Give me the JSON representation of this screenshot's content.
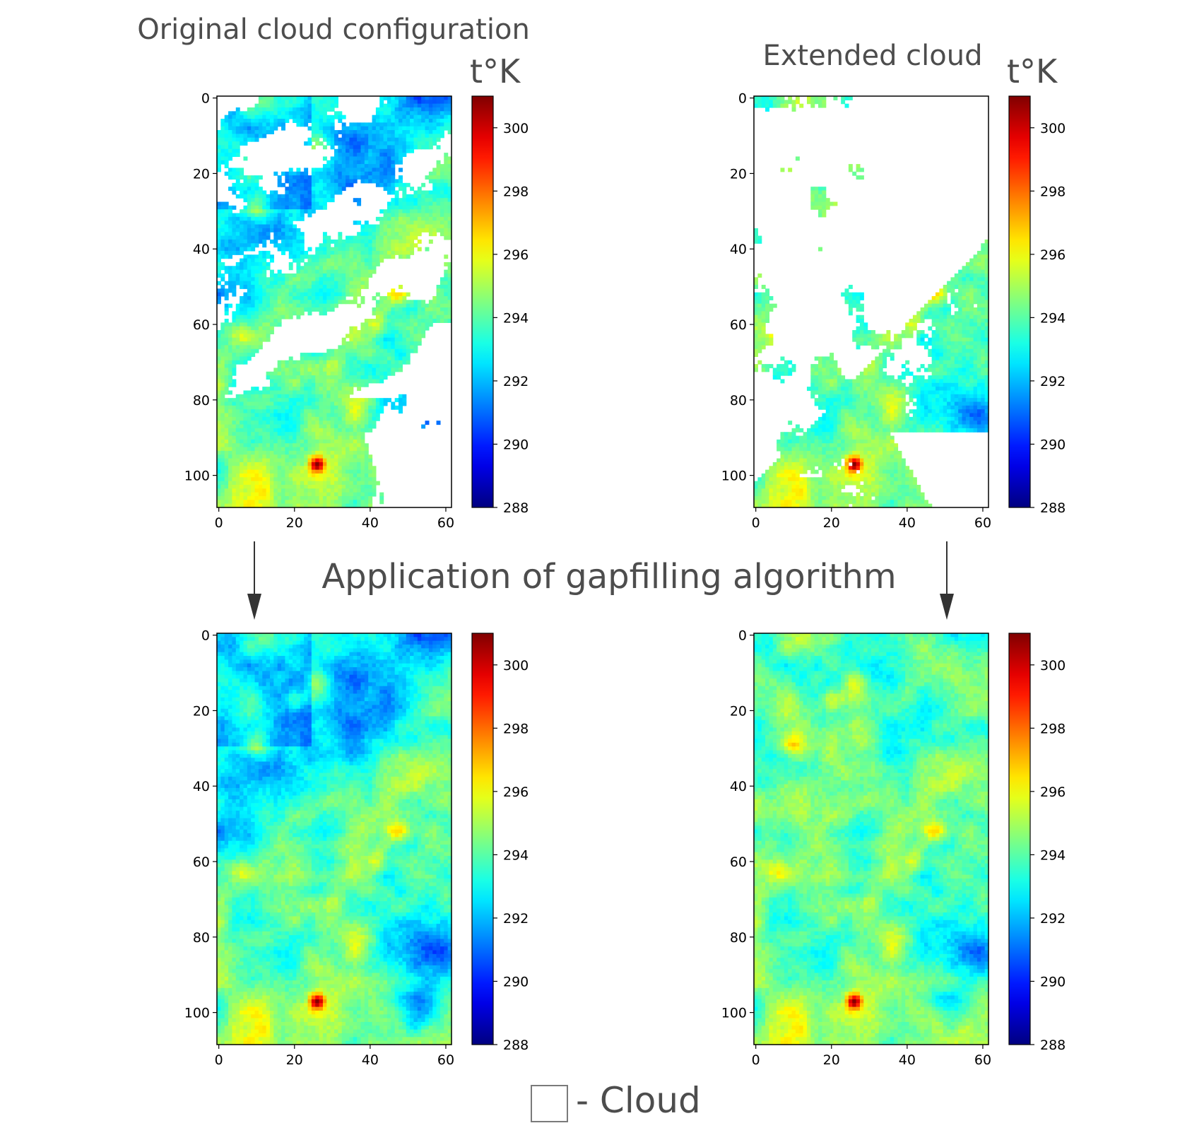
{
  "figure": {
    "center_text": "Application of gapfilling algorithm",
    "legend_text": "- Cloud",
    "legend_symbol_meaning": "white square = cloud",
    "text_color": "#4d4d4d"
  },
  "chart_data": [
    {
      "type": "heatmap",
      "title": "Original cloud configuration",
      "colorbar_label": "t°K",
      "colormap": "jet",
      "grid": false,
      "xlim": [
        0,
        61
      ],
      "ylim": [
        109,
        0
      ],
      "xticks": [
        "0",
        "20",
        "40",
        "60"
      ],
      "yticks": [
        "0",
        "20",
        "40",
        "60",
        "80",
        "100"
      ],
      "zlim": [
        288,
        301
      ],
      "colorbar_ticks": [
        "288",
        "290",
        "292",
        "294",
        "296",
        "298",
        "300"
      ],
      "hotspot": {
        "x": 26,
        "y": 97,
        "value": 300
      },
      "clouds": "large white masked bands running diagonally across the upper half"
    },
    {
      "type": "heatmap",
      "title": "Extended cloud",
      "colorbar_label": "t°K",
      "colormap": "jet",
      "grid": false,
      "xlim": [
        0,
        61
      ],
      "ylim": [
        109,
        0
      ],
      "xticks": [
        "0",
        "20",
        "40",
        "60"
      ],
      "yticks": [
        "0",
        "20",
        "40",
        "60",
        "80",
        "100"
      ],
      "zlim": [
        288,
        301
      ],
      "colorbar_ticks": [
        "288",
        "290",
        "292",
        "294",
        "296",
        "298",
        "300"
      ],
      "hotspot": {
        "x": 26,
        "y": 97,
        "value": 300
      },
      "clouds": "most of the upper-right area masked white"
    },
    {
      "type": "heatmap",
      "title": "",
      "colormap": "jet",
      "grid": false,
      "xlim": [
        0,
        61
      ],
      "ylim": [
        109,
        0
      ],
      "xticks": [
        "0",
        "20",
        "40",
        "60"
      ],
      "yticks": [
        "0",
        "20",
        "40",
        "60",
        "80",
        "100"
      ],
      "zlim": [
        288,
        301
      ],
      "colorbar_ticks": [
        "288",
        "290",
        "292",
        "294",
        "296",
        "298",
        "300"
      ],
      "hotspot": {
        "x": 26,
        "y": 97,
        "value": 300
      },
      "clouds": "none (gap-filled)"
    },
    {
      "type": "heatmap",
      "title": "",
      "colormap": "jet",
      "grid": false,
      "xlim": [
        0,
        61
      ],
      "ylim": [
        109,
        0
      ],
      "xticks": [
        "0",
        "20",
        "40",
        "60"
      ],
      "yticks": [
        "0",
        "20",
        "40",
        "60",
        "80",
        "100"
      ],
      "zlim": [
        288,
        301
      ],
      "colorbar_ticks": [
        "288",
        "290",
        "292",
        "294",
        "296",
        "298",
        "300"
      ],
      "hotspot": {
        "x": 26,
        "y": 97,
        "value": 300
      },
      "clouds": "none (gap-filled)"
    }
  ]
}
